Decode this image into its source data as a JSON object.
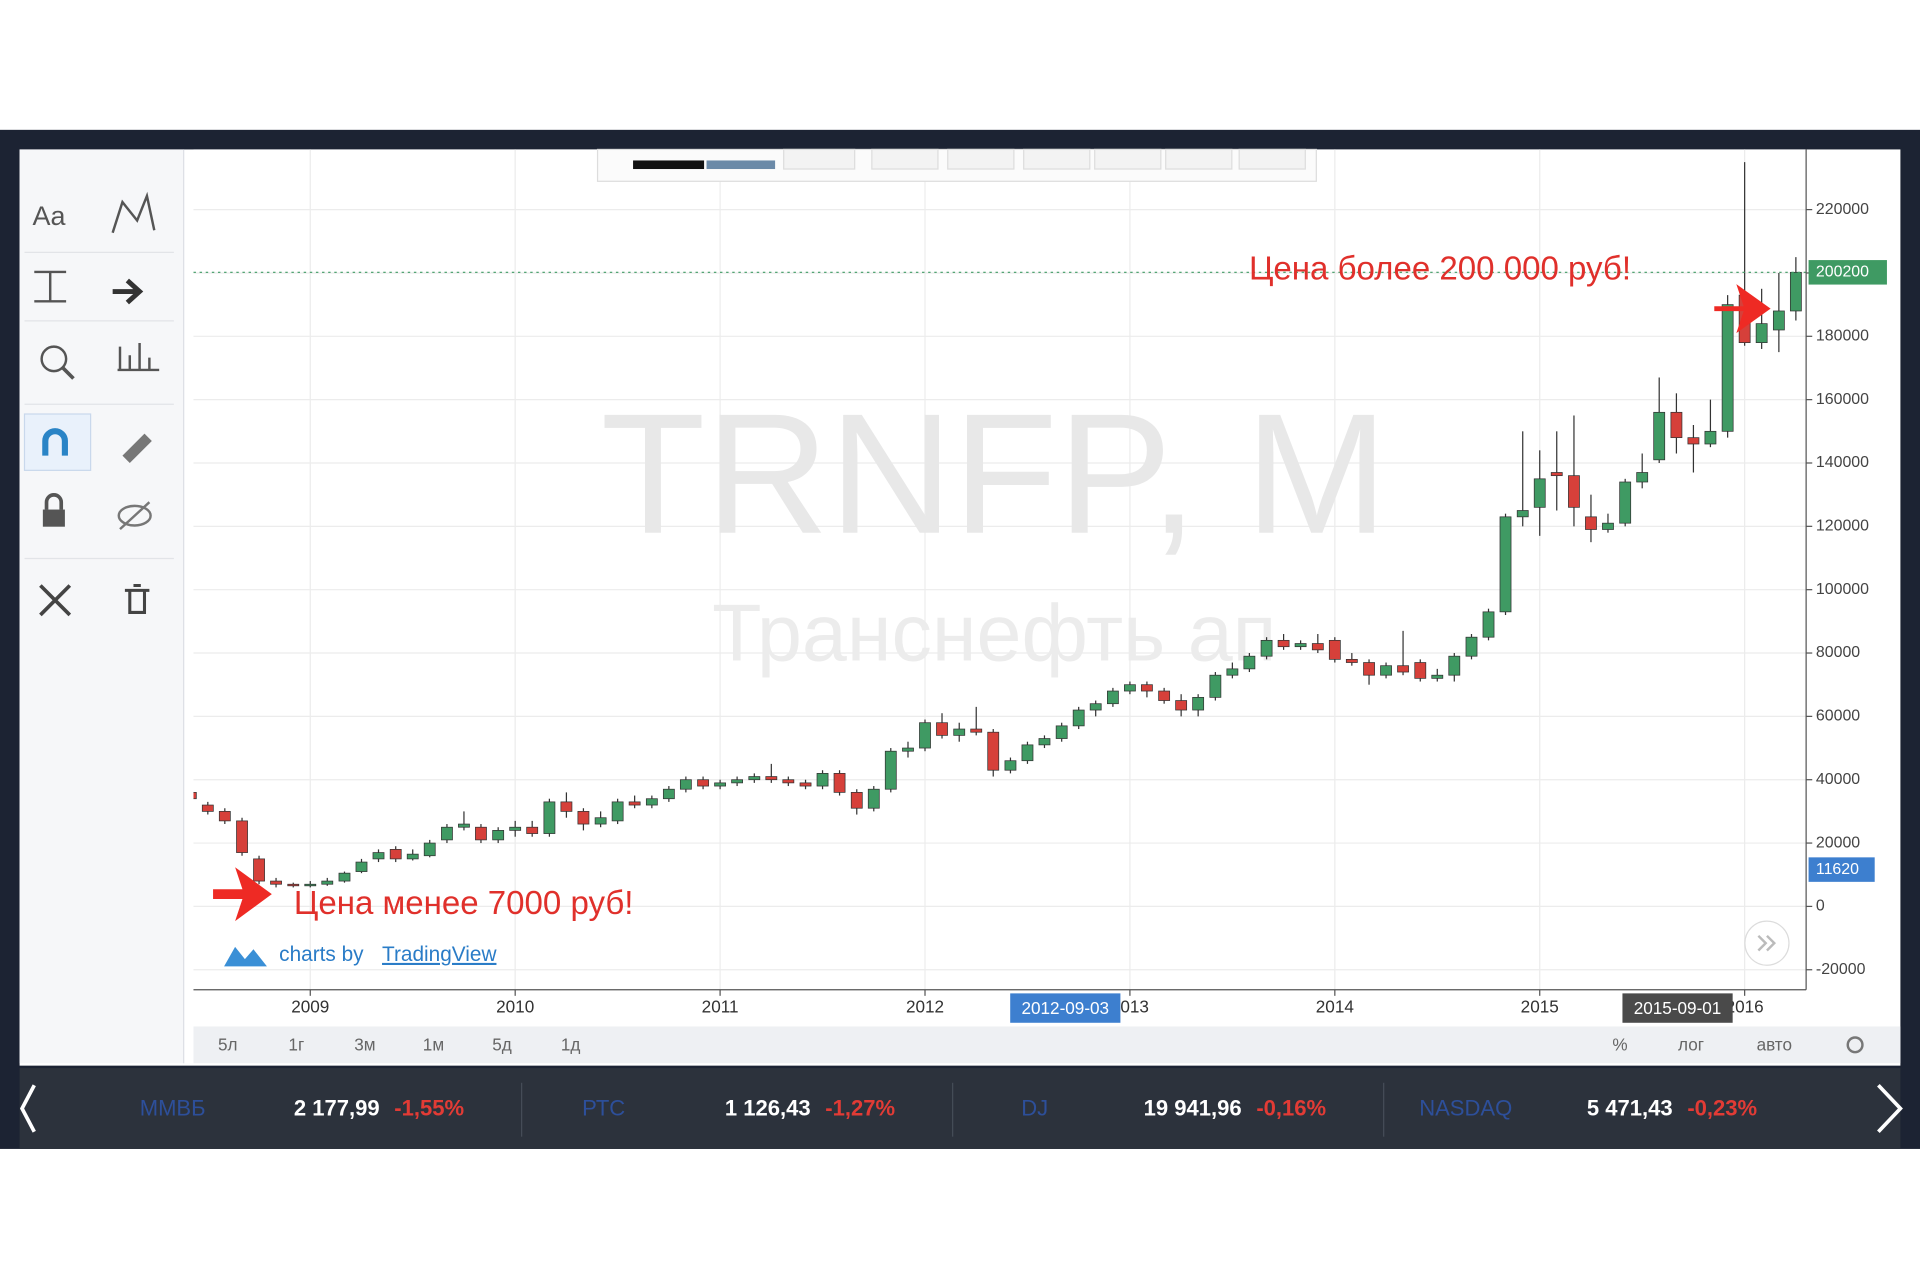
{
  "chart_data": {
    "type": "candlestick",
    "title": "TRNFP, M",
    "subtitle": "Транснефть ап",
    "x": [
      2008.417,
      2008.5,
      2008.583,
      2008.667,
      2008.75,
      2008.833,
      2008.917,
      2009,
      2009.083,
      2009.167,
      2009.25,
      2009.333,
      2009.417,
      2009.5,
      2009.583,
      2009.667,
      2009.75,
      2009.833,
      2009.917,
      2010,
      2010.083,
      2010.167,
      2010.25,
      2010.333,
      2010.417,
      2010.5,
      2010.583,
      2010.667,
      2010.75,
      2010.833,
      2010.917,
      2011,
      2011.083,
      2011.167,
      2011.25,
      2011.333,
      2011.417,
      2011.5,
      2011.583,
      2011.667,
      2011.75,
      2011.833,
      2011.917,
      2012,
      2012.083,
      2012.167,
      2012.25,
      2012.333,
      2012.417,
      2012.5,
      2012.583,
      2012.667,
      2012.75,
      2012.833,
      2012.917,
      2013,
      2013.083,
      2013.167,
      2013.25,
      2013.333,
      2013.417,
      2013.5,
      2013.583,
      2013.667,
      2013.75,
      2013.833,
      2013.917,
      2014,
      2014.083,
      2014.167,
      2014.25,
      2014.333,
      2014.417,
      2014.5,
      2014.583,
      2014.667,
      2014.75,
      2014.833,
      2014.917,
      2015,
      2015.083,
      2015.167,
      2015.25,
      2015.333,
      2015.417,
      2015.5,
      2015.583,
      2015.667,
      2015.75,
      2015.833,
      2015.917,
      2016,
      2016.083,
      2016.167,
      2016.25
    ],
    "open": [
      36000,
      32000,
      30000,
      27000,
      15000,
      8000,
      7000,
      6500,
      7000,
      8000,
      11000,
      15000,
      18000,
      15000,
      16000,
      21000,
      25000,
      25000,
      21000,
      24000,
      25000,
      23000,
      33000,
      30000,
      26000,
      27000,
      33000,
      32000,
      34000,
      37000,
      40000,
      38000,
      39000,
      40000,
      41000,
      40000,
      39000,
      38000,
      42000,
      36000,
      31000,
      37000,
      49000,
      50000,
      58000,
      54000,
      56000,
      55000,
      43000,
      46000,
      51000,
      53000,
      57000,
      62000,
      64000,
      68000,
      70000,
      68000,
      65000,
      62000,
      66000,
      73000,
      75000,
      79000,
      84000,
      82000,
      83000,
      84000,
      78000,
      77000,
      73000,
      76000,
      77000,
      72000,
      73000,
      79000,
      85000,
      93000,
      123000,
      126000,
      137000,
      136000,
      123000,
      119000,
      121000,
      134000,
      141000,
      156000,
      148000,
      146000,
      150000,
      193000,
      178000,
      182000,
      188000
    ],
    "high": [
      37000,
      33000,
      31000,
      28000,
      16000,
      9000,
      7500,
      8000,
      9000,
      11000,
      15000,
      18000,
      19000,
      18000,
      21000,
      26000,
      30000,
      26000,
      25000,
      27000,
      27000,
      34000,
      36000,
      31000,
      30000,
      34000,
      35000,
      35000,
      38000,
      41000,
      41000,
      40000,
      41000,
      42000,
      45000,
      41000,
      40000,
      43000,
      43000,
      37000,
      38000,
      50000,
      52000,
      59000,
      61000,
      58000,
      63000,
      56000,
      47000,
      52000,
      54000,
      58000,
      63000,
      65000,
      69000,
      71000,
      71000,
      69000,
      67000,
      67000,
      74000,
      77000,
      80000,
      85000,
      86000,
      84000,
      86000,
      85000,
      80000,
      78000,
      77000,
      87000,
      78000,
      75000,
      80000,
      86000,
      94000,
      124000,
      150000,
      144000,
      150000,
      155000,
      130000,
      124000,
      135000,
      143000,
      167000,
      162000,
      152000,
      160000,
      193000,
      235000,
      195000,
      200000,
      205000
    ],
    "low": [
      33000,
      29000,
      26000,
      16000,
      7000,
      6000,
      6000,
      6000,
      6500,
      7500,
      10500,
      14000,
      14000,
      14500,
      15500,
      20000,
      24000,
      20000,
      20000,
      22000,
      22000,
      22000,
      28000,
      24000,
      25000,
      26000,
      31000,
      31000,
      33000,
      36000,
      37000,
      37000,
      38000,
      39000,
      39000,
      38000,
      37000,
      37000,
      35000,
      29000,
      30000,
      36000,
      47000,
      49000,
      53000,
      52000,
      54000,
      41000,
      42000,
      45000,
      50000,
      52000,
      56000,
      60000,
      63000,
      67000,
      66000,
      64000,
      60000,
      60000,
      65000,
      72000,
      74000,
      78000,
      81000,
      81000,
      80000,
      77000,
      76000,
      70000,
      72000,
      73000,
      71000,
      71000,
      71000,
      78000,
      84000,
      92000,
      120000,
      117000,
      125000,
      120000,
      115000,
      118000,
      120000,
      132000,
      140000,
      143000,
      137000,
      145000,
      148000,
      177000,
      176000,
      175000,
      185000
    ],
    "close": [
      34000,
      30000,
      27000,
      17000,
      8000,
      7000,
      6500,
      7000,
      8000,
      10500,
      14000,
      17000,
      15000,
      16500,
      20000,
      25000,
      26000,
      21000,
      24000,
      25000,
      23000,
      33000,
      30000,
      26000,
      28000,
      33000,
      32000,
      34000,
      37000,
      40000,
      38000,
      39000,
      40000,
      41000,
      40000,
      39000,
      38000,
      42000,
      36000,
      31000,
      37000,
      49000,
      50000,
      58000,
      54000,
      56000,
      55000,
      43000,
      46000,
      51000,
      53000,
      57000,
      62000,
      64000,
      68000,
      70000,
      68000,
      65000,
      62000,
      66000,
      73000,
      75000,
      79000,
      84000,
      82000,
      83000,
      81000,
      78000,
      77000,
      73000,
      76000,
      74000,
      72000,
      73000,
      79000,
      85000,
      93000,
      123000,
      125000,
      135000,
      136000,
      126000,
      119000,
      121000,
      134000,
      137000,
      156000,
      148000,
      146000,
      150000,
      190000,
      178000,
      184000,
      188000,
      200200
    ],
    "up_color": "#3f9a63",
    "down_color": "#d6403a",
    "xlim": [
      2008.43,
      2016.3
    ],
    "xticks": [
      2009,
      2010,
      2011,
      2012,
      2013,
      2014,
      2015,
      2016
    ],
    "ylim": [
      -26300,
      239000
    ],
    "yticks": [
      -20000,
      0,
      20000,
      40000,
      60000,
      80000,
      100000,
      120000,
      140000,
      160000,
      180000,
      200000,
      220000
    ],
    "grid": true,
    "last_price": 200200,
    "crosshair_price": 11620,
    "crosshair_dates": [
      "2012-09-03",
      "2015-09-01"
    ],
    "annotations": [
      "Цена более 200 000 руб!",
      "Цена менее 7000 руб!"
    ]
  },
  "ui": {
    "toolbar_text": "Aa",
    "branding": {
      "prefix": "charts by",
      "link": "TradingView"
    },
    "timeframes": [
      "5л",
      "1г",
      "3м",
      "1м",
      "5д",
      "1д"
    ],
    "scale_buttons": [
      "%",
      "лог",
      "авто"
    ],
    "tickers": [
      {
        "name": "ММВБ",
        "price": "2 177,99",
        "change": "-1,55%"
      },
      {
        "name": "РТС",
        "price": "1 126,43",
        "change": "-1,27%"
      },
      {
        "name": "DJ",
        "price": "19 941,96",
        "change": "-0,16%"
      },
      {
        "name": "NASDAQ",
        "price": "5 471,43",
        "change": "-0,23%"
      }
    ]
  }
}
